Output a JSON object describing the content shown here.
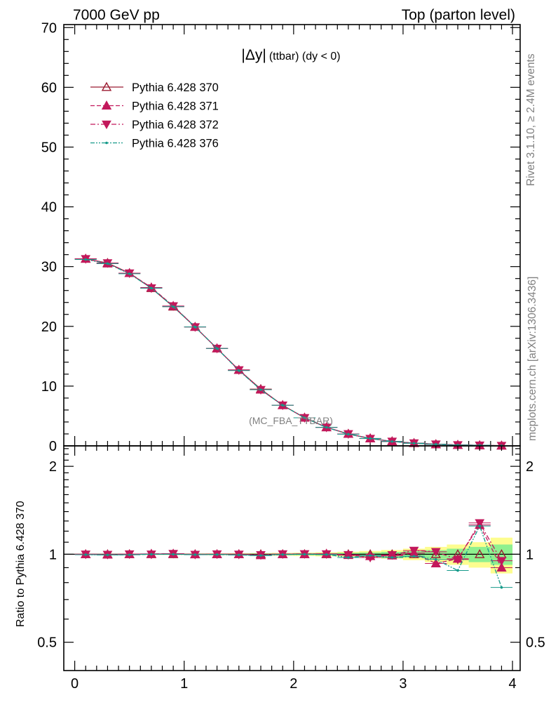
{
  "header": {
    "left": "7000 GeV pp",
    "right": "Top (parton level)"
  },
  "side_labels": {
    "rivet": "Rivet 3.1.10, ≥ 2.4M events",
    "mcplots": "mcplots.cern.ch [arXiv:1306.3436]"
  },
  "chart_data": [
    {
      "type": "line",
      "title_main": "|Δy|",
      "title_sub": "(ttbar) (dy < 0)",
      "watermark": "(MC_FBA_TTBAR)",
      "xlim": [
        -0.1,
        4.07
      ],
      "ylim": [
        0,
        70.5
      ],
      "x_ticks": [
        0,
        1,
        2,
        3,
        4
      ],
      "y_ticks": [
        0,
        10,
        20,
        30,
        40,
        50,
        60,
        70
      ],
      "y_tick_labels": [
        "0",
        "10",
        "20",
        "30",
        "40",
        "50",
        "60",
        "70"
      ],
      "x": [
        0.1,
        0.3,
        0.5,
        0.7,
        0.9,
        1.1,
        1.3,
        1.5,
        1.7,
        1.9,
        2.1,
        2.3,
        2.5,
        2.7,
        2.9,
        3.1,
        3.3,
        3.5,
        3.7,
        3.9
      ],
      "series": [
        {
          "name": "Pythia 6.428 370",
          "color": "#9b1b30",
          "line": "solid",
          "marker": "triangle-up-open",
          "values": [
            31.3,
            30.6,
            28.9,
            26.4,
            23.3,
            19.9,
            16.3,
            12.7,
            9.5,
            6.8,
            4.7,
            3.1,
            2.0,
            1.25,
            0.75,
            0.45,
            0.27,
            0.15,
            0.08,
            0.04
          ]
        },
        {
          "name": "Pythia 6.428 371",
          "color": "#c2185b",
          "line": "dashed",
          "marker": "triangle-up-filled",
          "values": [
            31.3,
            30.5,
            28.9,
            26.5,
            23.4,
            19.9,
            16.3,
            12.7,
            9.4,
            6.8,
            4.7,
            3.1,
            2.0,
            1.23,
            0.74,
            0.46,
            0.25,
            0.15,
            0.1,
            0.036
          ]
        },
        {
          "name": "Pythia 6.428 372",
          "color": "#c2185b",
          "line": "dashdot",
          "marker": "triangle-down-filled",
          "values": [
            31.3,
            30.6,
            28.9,
            26.4,
            23.4,
            19.9,
            16.3,
            12.7,
            9.4,
            6.8,
            4.7,
            3.1,
            2.0,
            1.22,
            0.74,
            0.46,
            0.28,
            0.15,
            0.1,
            0.038
          ]
        },
        {
          "name": "Pythia 6.428 376",
          "color": "#159a8a",
          "line": "dashdotdot",
          "marker": "dot",
          "values": [
            31.2,
            30.5,
            28.8,
            26.4,
            23.3,
            19.9,
            16.3,
            12.6,
            9.4,
            6.8,
            4.7,
            3.1,
            1.95,
            1.24,
            0.73,
            0.44,
            0.26,
            0.13,
            0.1,
            0.03
          ]
        }
      ]
    },
    {
      "type": "line",
      "ylabel": "Ratio to Pythia 6.428 370",
      "xlim": [
        -0.1,
        4.07
      ],
      "ylim": [
        0.4,
        2.35
      ],
      "y_scale": "log",
      "x_ticks": [
        0,
        1,
        2,
        3,
        4
      ],
      "x_tick_labels": [
        "0",
        "1",
        "2",
        "3",
        "4"
      ],
      "y_ticks": [
        0.5,
        1,
        2
      ],
      "y_tick_labels": [
        "0.5",
        "1",
        "2"
      ],
      "x": [
        0.1,
        0.3,
        0.5,
        0.7,
        0.9,
        1.1,
        1.3,
        1.5,
        1.7,
        1.9,
        2.1,
        2.3,
        2.5,
        2.7,
        2.9,
        3.1,
        3.3,
        3.5,
        3.7,
        3.9
      ],
      "bins": [
        0.0,
        0.2,
        0.4,
        0.6,
        0.8,
        1.0,
        1.2,
        1.4,
        1.6,
        1.8,
        2.0,
        2.2,
        2.4,
        2.6,
        2.8,
        3.0,
        3.2,
        3.4,
        3.6,
        3.8,
        4.0
      ],
      "band_yellow": [
        0.004,
        0.004,
        0.004,
        0.005,
        0.005,
        0.006,
        0.007,
        0.008,
        0.009,
        0.011,
        0.013,
        0.016,
        0.02,
        0.026,
        0.034,
        0.045,
        0.06,
        0.08,
        0.1,
        0.14
      ],
      "band_green": [
        0.002,
        0.002,
        0.002,
        0.003,
        0.003,
        0.003,
        0.004,
        0.004,
        0.005,
        0.006,
        0.007,
        0.009,
        0.011,
        0.014,
        0.019,
        0.025,
        0.033,
        0.045,
        0.06,
        0.08
      ],
      "series": [
        {
          "name": "Pythia 6.428 371",
          "color": "#c2185b",
          "line": "dashed",
          "marker": "triangle-up-filled",
          "values": [
            1.0,
            0.997,
            1.0,
            1.003,
            1.004,
            0.999,
            1.0,
            1.0,
            0.992,
            1.0,
            1.0,
            1.004,
            0.993,
            0.985,
            0.99,
            1.01,
            0.93,
            0.965,
            1.26,
            0.9
          ]
        },
        {
          "name": "Pythia 6.428 372",
          "color": "#c2185b",
          "line": "dashdot",
          "marker": "triangle-down-filled",
          "values": [
            1.0,
            0.998,
            1.001,
            1.0,
            1.005,
            0.998,
            1.001,
            0.999,
            0.995,
            1.002,
            1.003,
            1.002,
            0.996,
            0.975,
            0.995,
            1.03,
            1.02,
            0.96,
            1.28,
            0.95
          ]
        },
        {
          "name": "Pythia 6.428 376",
          "color": "#159a8a",
          "line": "dashdotdot",
          "marker": "dot",
          "values": [
            0.997,
            0.995,
            0.996,
            1.0,
            1.0,
            0.997,
            0.998,
            0.995,
            0.99,
            0.998,
            1.0,
            0.998,
            0.975,
            0.99,
            0.975,
            0.985,
            0.96,
            0.88,
            1.25,
            0.77
          ]
        }
      ]
    }
  ]
}
